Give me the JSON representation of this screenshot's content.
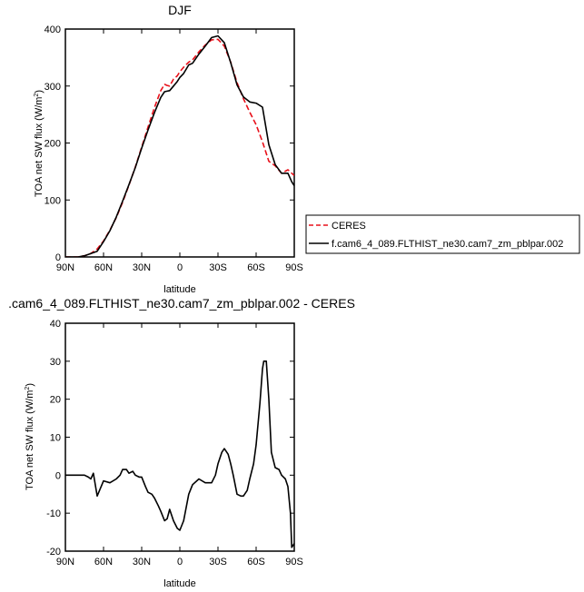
{
  "chart_data": [
    {
      "type": "line",
      "title": "DJF",
      "xlabel": "latitude",
      "ylabel": "TOA net SW flux (W/m²)",
      "ylabel_main": "TOA net SW flux (W/m",
      "ylabel_sup": "2",
      "ylabel_close": ")",
      "xlim": [
        90,
        -90
      ],
      "ylim": [
        0,
        400
      ],
      "xticks": [
        90,
        60,
        30,
        0,
        -30,
        -60,
        -90
      ],
      "xtick_labels": [
        "90N",
        "60N",
        "30N",
        "0",
        "30S",
        "60S",
        "90S"
      ],
      "yticks": [
        0,
        100,
        200,
        300,
        400
      ],
      "ytick_labels": [
        "0",
        "100",
        "200",
        "300",
        "400"
      ],
      "legend_position": "right",
      "series": [
        {
          "name": "CERES",
          "color": "#e8101a",
          "dash": "dashed",
          "x": [
            90,
            85,
            80,
            75,
            70,
            65,
            60,
            55,
            50,
            45,
            40,
            35,
            30,
            25,
            20,
            15,
            12,
            10,
            8,
            5,
            2,
            0,
            -3,
            -7,
            -10,
            -15,
            -20,
            -25,
            -30,
            -35,
            -40,
            -45,
            -50,
            -55,
            -60,
            -65,
            -70,
            -75,
            -80,
            -85,
            -88,
            -90
          ],
          "y": [
            0,
            0,
            0,
            2,
            6,
            14,
            28,
            47,
            69,
            96,
            126,
            158,
            193,
            228,
            262,
            292,
            303,
            301,
            300,
            312,
            318,
            325,
            333,
            342,
            346,
            360,
            372,
            381,
            382,
            370,
            342,
            306,
            278,
            254,
            232,
            202,
            168,
            160,
            147,
            153,
            147,
            143
          ]
        },
        {
          "name": "f.cam6_4_089.FLTHIST_ne30.cam7_zm_pblpar.002",
          "color": "#000000",
          "dash": "solid",
          "x": [
            90,
            85,
            80,
            75,
            70,
            65,
            60,
            55,
            50,
            45,
            40,
            35,
            30,
            25,
            20,
            15,
            12,
            10,
            8,
            5,
            2,
            0,
            -3,
            -7,
            -10,
            -15,
            -20,
            -25,
            -30,
            -35,
            -40,
            -45,
            -50,
            -55,
            -60,
            -65,
            -70,
            -75,
            -80,
            -85,
            -88,
            -90
          ],
          "y": [
            0,
            0,
            0,
            2,
            6,
            10,
            27,
            46,
            70,
            98,
            127,
            157,
            191,
            223,
            253,
            280,
            290,
            291,
            292,
            300,
            308,
            315,
            322,
            337,
            340,
            356,
            370,
            385,
            388,
            376,
            341,
            302,
            281,
            272,
            270,
            263,
            197,
            162,
            147,
            147,
            132,
            125
          ]
        }
      ]
    },
    {
      "type": "line",
      "title": ".cam6_4_089.FLTHIST_ne30.cam7_zm_pblpar.002 - CERES",
      "xlabel": "latitude",
      "ylabel": "TOA net SW flux (W/m²)",
      "ylabel_main": "TOA net SW flux (W/m",
      "ylabel_sup": "2",
      "ylabel_close": ")",
      "xlim": [
        90,
        -90
      ],
      "ylim": [
        -20,
        40
      ],
      "xticks": [
        90,
        60,
        30,
        0,
        -30,
        -60,
        -90
      ],
      "xtick_labels": [
        "90N",
        "60N",
        "30N",
        "0",
        "30S",
        "60S",
        "90S"
      ],
      "yticks": [
        -20,
        -10,
        0,
        10,
        20,
        30,
        40
      ],
      "ytick_labels": [
        "-20",
        "-10",
        "0",
        "10",
        "20",
        "30",
        "40"
      ],
      "series": [
        {
          "color": "#000000",
          "dash": "solid",
          "x": [
            90,
            85,
            80,
            75,
            72,
            70,
            68,
            65,
            60,
            55,
            50,
            47,
            45,
            42,
            40,
            37,
            35,
            32,
            30,
            27,
            25,
            22,
            20,
            17,
            15,
            12,
            10,
            8,
            5,
            2,
            0,
            -3,
            -7,
            -10,
            -15,
            -20,
            -25,
            -28,
            -30,
            -33,
            -35,
            -38,
            -40,
            -42,
            -45,
            -48,
            -50,
            -53,
            -55,
            -58,
            -60,
            -63,
            -65,
            -66,
            -68,
            -70,
            -72,
            -75,
            -78,
            -80,
            -83,
            -85,
            -87,
            -88,
            -90
          ],
          "y": [
            0,
            0,
            0,
            0,
            -0.5,
            -1,
            0.5,
            -5.5,
            -1.5,
            -2,
            -1,
            0,
            1.5,
            1.5,
            0.5,
            1,
            0,
            -0.5,
            -0.5,
            -3,
            -4.5,
            -5,
            -6,
            -8,
            -9.5,
            -12,
            -11.5,
            -9,
            -12,
            -14,
            -14.5,
            -12,
            -5,
            -2.5,
            -1,
            -2,
            -2,
            0,
            3,
            6,
            7,
            5.5,
            3,
            0,
            -5,
            -5.5,
            -5.5,
            -4,
            -1,
            3,
            8,
            19,
            28,
            30,
            30,
            20,
            6,
            2,
            1.5,
            0,
            -1,
            -3,
            -10,
            -19,
            -18
          ]
        }
      ]
    }
  ]
}
